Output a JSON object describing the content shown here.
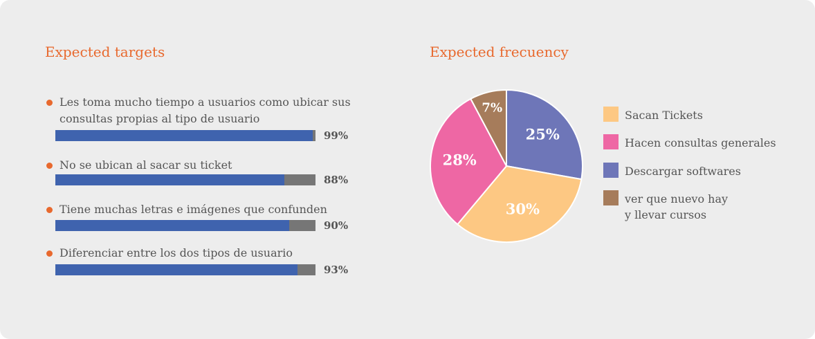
{
  "targets_section": {
    "title": "Expected targets",
    "items": [
      {
        "label": "Les toma mucho tiempo a usuarios como ubicar sus consultas propias al tipo de usuario",
        "percent": 99,
        "percent_label": "99%"
      },
      {
        "label": "No se ubican al sacar su ticket",
        "percent": 88,
        "percent_label": "88%"
      },
      {
        "label": "Tiene muchas letras e imágenes que confunden",
        "percent": 90,
        "percent_label": "90%"
      },
      {
        "label": "Diferenciar entre los dos tipos de usuario",
        "percent": 93,
        "percent_label": "93%"
      }
    ]
  },
  "frequency_section": {
    "title": "Expected frecuency"
  },
  "colors": {
    "accent": "#e8692e",
    "bar_fill": "#3f63ae",
    "bar_track": "#767676"
  },
  "chart_data": [
    {
      "type": "bar",
      "title": "Expected targets",
      "categories": [
        "Les toma mucho tiempo a usuarios como ubicar sus consultas propias al tipo de usuario",
        "No se ubican al sacar su ticket",
        "Tiene muchas letras e imágenes que confunden",
        "Diferenciar entre los dos tipos de usuario"
      ],
      "values": [
        99,
        88,
        90,
        93
      ],
      "ylim": [
        0,
        100
      ],
      "orientation": "horizontal"
    },
    {
      "type": "pie",
      "title": "Expected frecuency",
      "slices": [
        {
          "label": "Descargar softwares",
          "value": 25,
          "value_label": "25%",
          "color": "#6e76b8"
        },
        {
          "label": "Sacan Tickets",
          "value": 30,
          "value_label": "30%",
          "color": "#fdc883"
        },
        {
          "label": "Hacen consultas generales",
          "value": 28,
          "value_label": "28%",
          "color": "#ee67a4"
        },
        {
          "label": "ver que nuevo hay\ny llevar cursos",
          "value": 7,
          "value_label": "7%",
          "color": "#a67c5b"
        }
      ],
      "legend": [
        {
          "label": "Sacan Tickets",
          "color": "#fdc883"
        },
        {
          "label": "Hacen consultas generales",
          "color": "#ee67a4"
        },
        {
          "label": "Descargar softwares",
          "color": "#6e76b8"
        },
        {
          "label": "ver que nuevo hay\ny llevar cursos",
          "color": "#a67c5b"
        }
      ],
      "legend_position": "right"
    }
  ]
}
